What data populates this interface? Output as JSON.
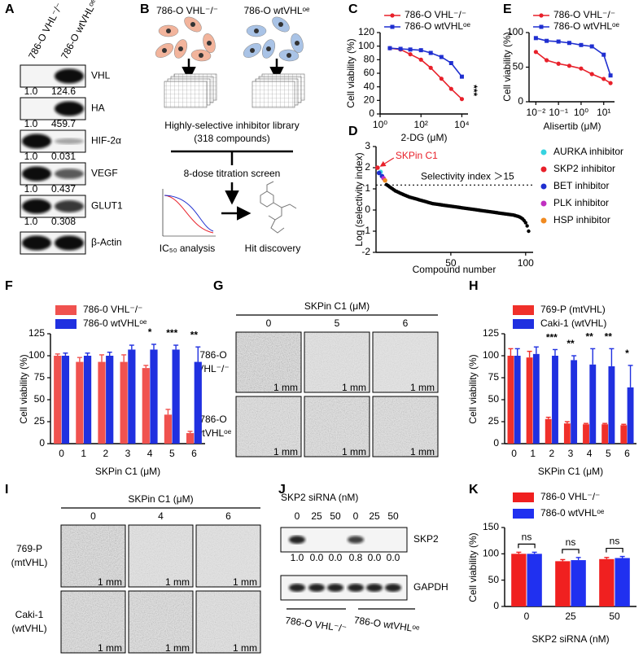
{
  "panel_labels": [
    "A",
    "B",
    "C",
    "D",
    "E",
    "F",
    "G",
    "H",
    "I",
    "J",
    "K"
  ],
  "blot_a": {
    "columns": [
      "786-O VHL⁻/⁻",
      "786-O wtVHLᵒᵉ"
    ],
    "rows": [
      {
        "label": "VHL",
        "values": [
          "1.0",
          "124.6"
        ]
      },
      {
        "label": "HA",
        "values": [
          "1.0",
          "459.7"
        ]
      },
      {
        "label": "HIF-2α",
        "values": [
          "1.0",
          "0.031"
        ]
      },
      {
        "label": "VEGF",
        "values": [
          "1.0",
          "0.437"
        ]
      },
      {
        "label": "GLUT1",
        "values": [
          "1.0",
          "0.308"
        ]
      },
      {
        "label": "β-Actin"
      }
    ]
  },
  "schematic": {
    "cells": [
      "786-O VHL⁻/⁻",
      "786-O wtVHLᵒᵉ"
    ],
    "library": "Highly-selective inhibitor library",
    "count": "(318 compounds)",
    "screen": "8-dose titration screen",
    "analysis": "IC₅₀ analysis",
    "hit": "Hit discovery"
  },
  "image_g": {
    "title": "SKPin C1 (μM)",
    "columns": [
      "0",
      "5",
      "6"
    ],
    "rows": [
      [
        "786-O",
        "VHL⁻/⁻"
      ],
      [
        "786-O",
        "wtVHLᵒᵉ"
      ]
    ],
    "scale": "1 mm"
  },
  "image_i": {
    "title": "SKPin C1 (μM)",
    "columns": [
      "0",
      "4",
      "6"
    ],
    "rows": [
      [
        "769-P",
        "(mtVHL)"
      ],
      [
        "Caki-1",
        "(wtVHL)"
      ]
    ],
    "scale": "1 mm"
  },
  "blot_j": {
    "title": "SKP2 siRNA (nM)",
    "lanes": [
      "0",
      "25",
      "50",
      "0",
      "25",
      "50"
    ],
    "rows": [
      {
        "label": "SKP2",
        "values": [
          "1.0",
          "0.0",
          "0.0",
          "0.8",
          "0.0",
          "0.0"
        ]
      },
      {
        "label": "GAPDH"
      }
    ],
    "groups": [
      "786-O VHL⁻/⁻",
      "786-O wtVHLᵒᵉ"
    ]
  },
  "chart_data": [
    {
      "type": "line",
      "xscale": "log",
      "ylabel": "Cell viability (%)",
      "xlabel": "2-DG (μM)",
      "xlim": [
        1,
        20000
      ],
      "ylim": [
        0,
        120
      ],
      "xticks": [
        {
          "value": 1,
          "label": "10⁰"
        },
        {
          "value": 100,
          "label": "10²"
        },
        {
          "value": 10000,
          "label": "10⁴"
        }
      ],
      "yticks": [
        0,
        20,
        40,
        60,
        80,
        100,
        120
      ],
      "annotation": "***",
      "series": [
        {
          "name": "786-O VHL⁻/⁻",
          "color": "#e8202a",
          "marker": "circle",
          "x": [
            3,
            10,
            30,
            100,
            300,
            1000,
            3000,
            10000
          ],
          "values": [
            97,
            95,
            88,
            80,
            68,
            52,
            37,
            22
          ]
        },
        {
          "name": "786-O wtVHLᵒᵉ",
          "color": "#1f2fd0",
          "marker": "square",
          "x": [
            3,
            10,
            30,
            100,
            300,
            1000,
            3000,
            10000
          ],
          "values": [
            97,
            96,
            95,
            94,
            90,
            84,
            75,
            55
          ]
        }
      ]
    },
    {
      "type": "line",
      "xscale": "log",
      "ylabel": "Cell viability (%)",
      "xlabel": "Alisertib (μM)",
      "xlim": [
        0.005,
        30
      ],
      "ylim": [
        0,
        100
      ],
      "xticks": [
        {
          "value": 0.01,
          "label": "10⁻²"
        },
        {
          "value": 0.1,
          "label": "10⁻¹"
        },
        {
          "value": 1,
          "label": "10⁰"
        },
        {
          "value": 10,
          "label": "10¹"
        }
      ],
      "yticks": [
        0,
        50,
        100
      ],
      "series": [
        {
          "name": "786-O VHL⁻/⁻",
          "color": "#e8202a",
          "marker": "circle",
          "x": [
            0.01,
            0.03,
            0.1,
            0.3,
            1,
            3,
            10,
            20
          ],
          "values": [
            72,
            60,
            55,
            52,
            48,
            40,
            33,
            27
          ]
        },
        {
          "name": "786-O wtVHLᵒᵉ",
          "color": "#1f2fd0",
          "marker": "square",
          "x": [
            0.01,
            0.03,
            0.1,
            0.3,
            1,
            3,
            10,
            20
          ],
          "values": [
            92,
            88,
            87,
            85,
            82,
            80,
            68,
            38
          ]
        }
      ]
    },
    {
      "type": "scatter",
      "ylabel": "Log (selectivity index)",
      "xlabel": "Compound number",
      "xlim": [
        0,
        105
      ],
      "ylim": [
        -2,
        3
      ],
      "xticks": [
        50,
        100
      ],
      "yticks": [
        -2,
        -1,
        0,
        1,
        2,
        3
      ],
      "threshold": 1.18,
      "threshold_label": "Selectivity index ＞15",
      "annotation": "SKPin C1",
      "series": [
        {
          "name": "AURKA inhibitor",
          "color": "#36d3e0",
          "x": [
            3
          ],
          "values": [
            1.8
          ]
        },
        {
          "name": "SKP2 inhibitor",
          "color": "#e8202a",
          "x": [
            1
          ],
          "values": [
            2.0
          ]
        },
        {
          "name": "BET inhibitor",
          "color": "#1f2fd0",
          "x": [
            2,
            4
          ],
          "values": [
            1.75,
            1.6
          ]
        },
        {
          "name": "PLK inhibitor",
          "color": "#c030c0",
          "x": [
            5
          ],
          "values": [
            1.5
          ]
        },
        {
          "name": "HSP inhibitor",
          "color": "#f08a20",
          "x": [
            6
          ],
          "values": [
            1.4
          ]
        }
      ],
      "points": {
        "color": "#000000",
        "x": [
          7,
          8,
          9,
          10,
          11,
          12,
          13,
          14,
          15,
          16,
          17,
          18,
          19,
          20,
          21,
          22,
          23,
          24,
          25,
          26,
          27,
          28,
          29,
          30,
          31,
          32,
          33,
          34,
          35,
          36,
          37,
          38,
          39,
          40,
          41,
          42,
          43,
          44,
          45,
          46,
          47,
          48,
          49,
          50,
          51,
          52,
          53,
          54,
          55,
          56,
          57,
          58,
          59,
          60,
          61,
          62,
          63,
          64,
          65,
          66,
          67,
          68,
          69,
          70,
          71,
          72,
          73,
          74,
          75,
          76,
          77,
          78,
          79,
          80,
          81,
          82,
          83,
          84,
          85,
          86,
          87,
          88,
          89,
          90,
          91,
          92,
          93,
          94,
          95,
          96,
          97,
          98,
          99,
          100,
          101,
          102
        ],
        "values": [
          1.2,
          1.15,
          1.1,
          1.05,
          1.0,
          0.95,
          0.9,
          0.87,
          0.84,
          0.8,
          0.77,
          0.74,
          0.71,
          0.68,
          0.65,
          0.62,
          0.6,
          0.58,
          0.56,
          0.54,
          0.52,
          0.5,
          0.48,
          0.46,
          0.44,
          0.42,
          0.4,
          0.38,
          0.36,
          0.34,
          0.32,
          0.3,
          0.29,
          0.28,
          0.27,
          0.26,
          0.25,
          0.24,
          0.23,
          0.22,
          0.21,
          0.2,
          0.19,
          0.18,
          0.17,
          0.16,
          0.15,
          0.14,
          0.13,
          0.12,
          0.11,
          0.1,
          0.09,
          0.08,
          0.07,
          0.06,
          0.05,
          0.04,
          0.03,
          0.02,
          0.01,
          0.0,
          -0.01,
          -0.02,
          -0.03,
          -0.04,
          -0.05,
          -0.06,
          -0.07,
          -0.08,
          -0.09,
          -0.1,
          -0.11,
          -0.12,
          -0.13,
          -0.14,
          -0.15,
          -0.16,
          -0.17,
          -0.18,
          -0.19,
          -0.2,
          -0.21,
          -0.22,
          -0.23,
          -0.24,
          -0.26,
          -0.28,
          -0.3,
          -0.33,
          -0.37,
          -0.42,
          -0.5,
          -0.6,
          -0.75,
          -1.0
        ]
      }
    },
    {
      "type": "bar",
      "ylabel": "Cell viability (%)",
      "xlabel": "SKPin C1 (μM)",
      "ylim": [
        0,
        125
      ],
      "yticks": [
        0,
        25,
        50,
        75,
        100,
        125
      ],
      "categories": [
        "0",
        "1",
        "2",
        "3",
        "4",
        "5",
        "6"
      ],
      "significance": [
        null,
        null,
        null,
        null,
        "*",
        "***",
        "**"
      ],
      "series": [
        {
          "name": "786-0 VHL⁻/⁻",
          "color": "#f0524f",
          "values": [
            100,
            93,
            93,
            93,
            86,
            33,
            12
          ],
          "errors": [
            2,
            5,
            8,
            8,
            3,
            6,
            2
          ]
        },
        {
          "name": "786-0 wtVHLᵒᵉ",
          "color": "#2030e0",
          "values": [
            100,
            100,
            100,
            107,
            107,
            107,
            93
          ],
          "errors": [
            3,
            3,
            4,
            5,
            6,
            5,
            17
          ]
        }
      ]
    },
    {
      "type": "bar",
      "ylabel": "Cell viability (%)",
      "xlabel": "SKPin C1 (μM)",
      "ylim": [
        0,
        125
      ],
      "yticks": [
        0,
        25,
        50,
        75,
        100,
        125
      ],
      "categories": [
        "0",
        "1",
        "2",
        "3",
        "4",
        "5",
        "6"
      ],
      "significance": [
        null,
        null,
        "***",
        "**",
        "**",
        "**",
        "*"
      ],
      "series": [
        {
          "name": "769-P (mtVHL)",
          "color": "#f0302a",
          "values": [
            100,
            98,
            28,
            23,
            22,
            22,
            21
          ],
          "errors": [
            8,
            7,
            2,
            2,
            1,
            1,
            1
          ]
        },
        {
          "name": "Caki-1 (wtVHL)",
          "color": "#2030e0",
          "values": [
            100,
            102,
            100,
            95,
            90,
            88,
            64
          ],
          "errors": [
            8,
            8,
            7,
            5,
            18,
            20,
            25
          ]
        }
      ]
    },
    {
      "type": "bar",
      "ylabel": "Cell viability (%)",
      "xlabel": "SKP2 siRNA (nM)",
      "ylim": [
        0,
        150
      ],
      "yticks": [
        0,
        50,
        100,
        150
      ],
      "categories": [
        "0",
        "25",
        "50"
      ],
      "significance": [
        "ns",
        "ns",
        "ns"
      ],
      "brackets": true,
      "series": [
        {
          "name": "786-0 VHL⁻/⁻",
          "color": "#f02020",
          "values": [
            100,
            86,
            90
          ],
          "errors": [
            3,
            3,
            3
          ]
        },
        {
          "name": "786-0 wtVHLᵒᵉ",
          "color": "#2030f0",
          "values": [
            100,
            88,
            92
          ],
          "errors": [
            3,
            5,
            3
          ]
        }
      ]
    }
  ]
}
